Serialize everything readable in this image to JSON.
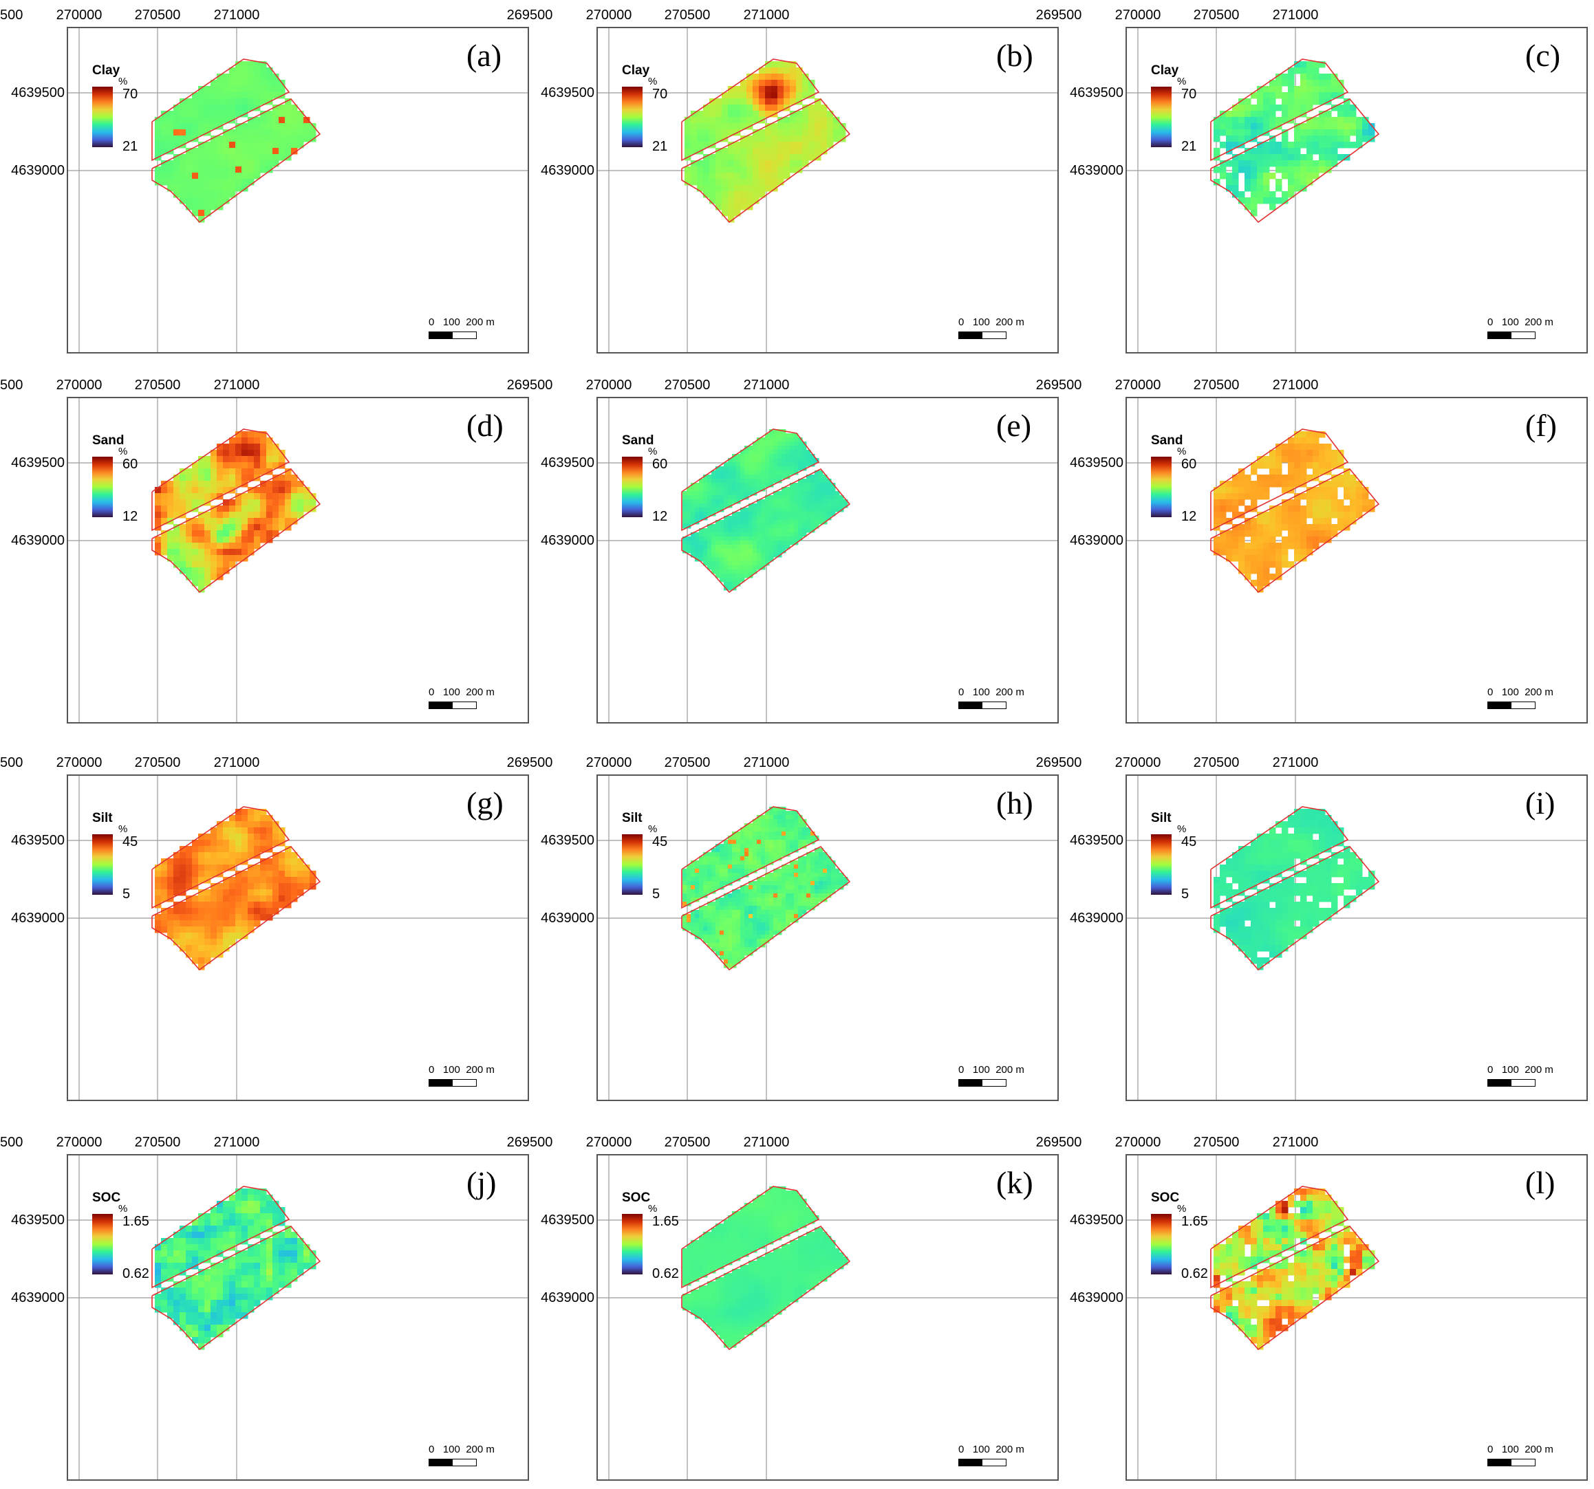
{
  "x_ticks": [
    "269500",
    "270000",
    "270500",
    "271000"
  ],
  "y_ticks": [
    "4639500",
    "4639000"
  ],
  "scalebar": {
    "labels": "0   100  200 m"
  },
  "unit": "%",
  "panels": [
    {
      "label": "(a)",
      "variable": "Clay",
      "max": "70",
      "min": "21",
      "pattern": "clay_a"
    },
    {
      "label": "(b)",
      "variable": "Clay",
      "max": "70",
      "min": "21",
      "pattern": "clay_b"
    },
    {
      "label": "(c)",
      "variable": "Clay",
      "max": "70",
      "min": "21",
      "pattern": "clay_c"
    },
    {
      "label": "(d)",
      "variable": "Sand",
      "max": "60",
      "min": "12",
      "pattern": "sand_d"
    },
    {
      "label": "(e)",
      "variable": "Sand",
      "max": "60",
      "min": "12",
      "pattern": "sand_e"
    },
    {
      "label": "(f)",
      "variable": "Sand",
      "max": "60",
      "min": "12",
      "pattern": "sand_f"
    },
    {
      "label": "(g)",
      "variable": "Silt",
      "max": "45",
      "min": "5",
      "pattern": "silt_g"
    },
    {
      "label": "(h)",
      "variable": "Silt",
      "max": "45",
      "min": "5",
      "pattern": "silt_h"
    },
    {
      "label": "(i)",
      "variable": "Silt",
      "max": "45",
      "min": "5",
      "pattern": "silt_i"
    },
    {
      "label": "(j)",
      "variable": "SOC",
      "max": "1.65",
      "min": "0.62",
      "pattern": "soc_j"
    },
    {
      "label": "(k)",
      "variable": "SOC",
      "max": "1.65",
      "min": "0.62",
      "pattern": "soc_k"
    },
    {
      "label": "(l)",
      "variable": "SOC",
      "max": "1.65",
      "min": "0.62",
      "pattern": "soc_l"
    }
  ],
  "colors": {
    "frame": "#555555",
    "grid": "#9a9a9a",
    "field_outline": "#e03030",
    "palette": "turbo"
  }
}
